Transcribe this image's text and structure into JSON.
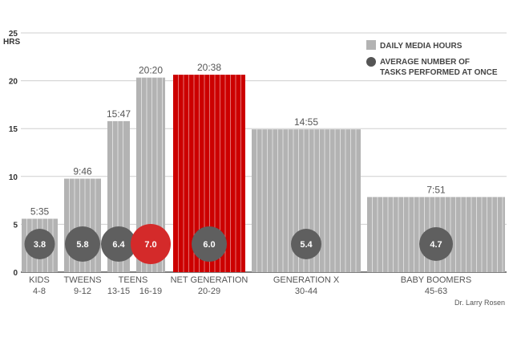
{
  "chart_data": {
    "type": "bar",
    "ylabel": "HRS",
    "ylim": [
      0,
      25
    ],
    "yticks": [
      0,
      5,
      10,
      15,
      20,
      25
    ],
    "grid": true,
    "legend": {
      "position": "top-right",
      "entries": [
        {
          "name": "DAILY MEDIA HOURS",
          "color": "#b3b3b3",
          "shape": "square"
        },
        {
          "name": "AVERAGE NUMBER OF",
          "name_line2": "TASKS PERFORMED AT ONCE",
          "color": "#555555",
          "shape": "circle"
        }
      ]
    },
    "categories": [
      {
        "name": "KIDS",
        "range": "4-8"
      },
      {
        "name": "TWEENS",
        "range": "9-12"
      },
      {
        "name": "TEENS",
        "range": "",
        "subgroups": [
          "13-15",
          "16-19"
        ]
      },
      {
        "name": "NET GENERATION",
        "range": "20-29"
      },
      {
        "name": "GENERATION X",
        "range": "30-44"
      },
      {
        "name": "BABY BOOMERS",
        "range": "45-63"
      }
    ],
    "series": [
      {
        "name": "DAILY MEDIA HOURS",
        "bars": [
          {
            "group": "KIDS 4-8",
            "value": 5.58,
            "label": "5:35",
            "tasks": 3.8,
            "tasks_label": "3.8"
          },
          {
            "group": "TWEENS 9-12",
            "value": 9.77,
            "label": "9:46",
            "tasks": 5.8,
            "tasks_label": "5.8"
          },
          {
            "group": "TEENS 13-15",
            "value": 15.78,
            "label": "15:47",
            "tasks": 6.4,
            "tasks_label": "6.4"
          },
          {
            "group": "TEENS 16-19",
            "value": 20.33,
            "label": "20:20",
            "tasks": 7.0,
            "tasks_label": "7.0",
            "highlight": "circle"
          },
          {
            "group": "NET GENERATION 20-29",
            "value": 20.63,
            "label": "20:38",
            "tasks": 6.0,
            "tasks_label": "6.0",
            "highlight": "bar"
          },
          {
            "group": "GENERATION X 30-44",
            "value": 14.92,
            "label": "14:55",
            "tasks": 5.4,
            "tasks_label": "5.4"
          },
          {
            "group": "BABY BOOMERS 45-63",
            "value": 7.85,
            "label": "7:51",
            "tasks": 4.7,
            "tasks_label": "4.7"
          }
        ]
      }
    ],
    "colors": {
      "bar": "#b3b3b3",
      "bar_stripe": "#ffffff",
      "highlight_bar": "#cc0000",
      "circle": "#5f5f5f",
      "highlight_circle": "#d42a2a",
      "highlight_text": "#cc0000",
      "grid": "#cfcfcf",
      "axis": "#333333"
    }
  },
  "credit": "Dr. Larry Rosen"
}
